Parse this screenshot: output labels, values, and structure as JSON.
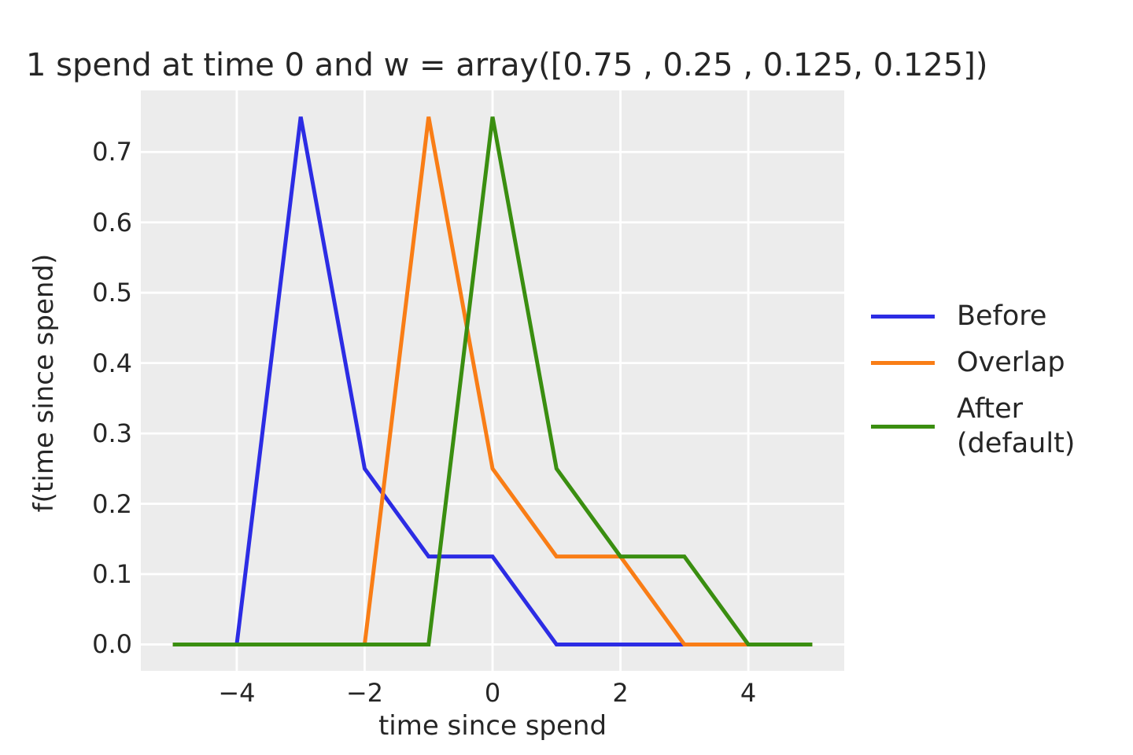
{
  "chart_data": {
    "type": "line",
    "title": "1 spend at time 0 and w = array([0.75 , 0.25 , 0.125, 0.125])",
    "xlabel": "time since spend",
    "ylabel": "f(time since spend)",
    "xlim": [
      -5.5,
      5.5
    ],
    "ylim": [
      -0.0375,
      0.7875
    ],
    "grid": true,
    "legend_position": "right-outside",
    "background_color": "#ececec",
    "grid_color": "#ffffff",
    "text_color": "#262626",
    "x": [
      -5,
      -4,
      -3,
      -2,
      -1,
      0,
      1,
      2,
      3,
      4,
      5
    ],
    "series": [
      {
        "name": "before",
        "label": "Before",
        "color": "#2c2ce4",
        "y": [
          0,
          0,
          0.75,
          0.25,
          0.125,
          0.125,
          0,
          0,
          0,
          0,
          0
        ]
      },
      {
        "name": "overlap",
        "label": "Overlap",
        "color": "#f97d16",
        "y": [
          0,
          0,
          0,
          0,
          0.75,
          0.25,
          0.125,
          0.125,
          0,
          0,
          0
        ]
      },
      {
        "name": "after-default",
        "label": "After\n(default)",
        "color": "#3a8e10",
        "y": [
          0,
          0,
          0,
          0,
          0,
          0.75,
          0.25,
          0.125,
          0.125,
          0,
          0
        ]
      }
    ],
    "xticks": [
      {
        "v": -4,
        "label": "−4"
      },
      {
        "v": -2,
        "label": "−2"
      },
      {
        "v": 0,
        "label": "0"
      },
      {
        "v": 2,
        "label": "2"
      },
      {
        "v": 4,
        "label": "4"
      }
    ],
    "yticks": [
      {
        "v": 0.0,
        "label": "0.0"
      },
      {
        "v": 0.1,
        "label": "0.1"
      },
      {
        "v": 0.2,
        "label": "0.2"
      },
      {
        "v": 0.3,
        "label": "0.3"
      },
      {
        "v": 0.4,
        "label": "0.4"
      },
      {
        "v": 0.5,
        "label": "0.5"
      },
      {
        "v": 0.6,
        "label": "0.6"
      },
      {
        "v": 0.7,
        "label": "0.7"
      }
    ]
  }
}
